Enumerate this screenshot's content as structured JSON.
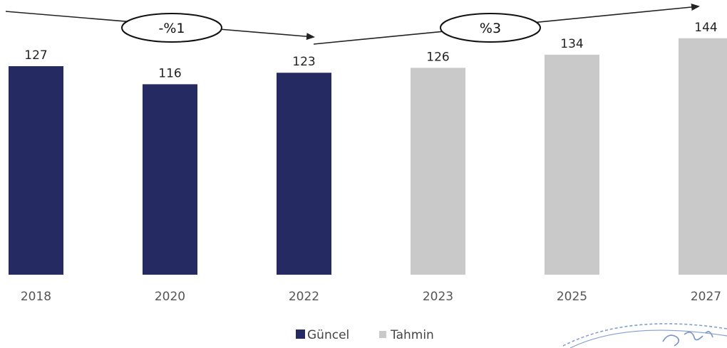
{
  "chart_data": {
    "type": "bar",
    "categories": [
      "2018",
      "2020",
      "2022",
      "2023",
      "2025",
      "2027"
    ],
    "values": [
      127,
      116,
      123,
      126,
      134,
      144
    ],
    "series_assignment": [
      "Güncel",
      "Güncel",
      "Güncel",
      "Tahmin",
      "Tahmin",
      "Tahmin"
    ],
    "legend": [
      {
        "name": "Güncel",
        "color": "#262a63"
      },
      {
        "name": "Tahmin",
        "color": "#c9c9ca"
      }
    ],
    "legend_position": "bottom",
    "annotations": [
      {
        "label": "-%1",
        "from": "2018",
        "to": "2022"
      },
      {
        "label": "%3",
        "from": "2022",
        "to": "2027"
      }
    ],
    "grid": false,
    "ylim": [
      0,
      150
    ]
  },
  "colors": {
    "guncel": "#262a63",
    "tahmin": "#c9c9ca",
    "arrow": "#222222"
  }
}
